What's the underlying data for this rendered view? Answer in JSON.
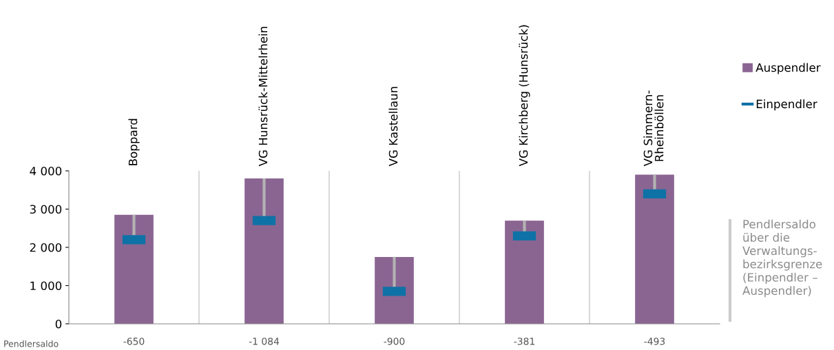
{
  "chart_data": {
    "type": "bar",
    "categories": [
      "Boppard",
      "VG Hunsrück-Mittelrhein",
      "VG Kastellaun",
      "VG Kirchberg (Hunsrück)",
      "VG Simmern-\nRheinböllen"
    ],
    "series": [
      {
        "name": "Auspendler",
        "color": "#8a6592",
        "values": [
          2850,
          3800,
          1750,
          2700,
          3900
        ]
      },
      {
        "name": "Einpendler",
        "type": "scatter",
        "color": "#0f72a6",
        "values": [
          2200,
          2700,
          850,
          2300,
          3400
        ],
        "errors": [
          [
            2200,
            2850
          ],
          [
            2700,
            3800
          ],
          [
            850,
            1750
          ],
          [
            2300,
            2700
          ],
          [
            3400,
            3900
          ]
        ]
      }
    ],
    "ylim": [
      0,
      4000
    ],
    "yticks": [
      0,
      {
        "value": 1000,
        "label": "1 000"
      },
      {
        "value": 2000,
        "label": "2 000"
      },
      {
        "value": 3000,
        "label": "3 000"
      },
      {
        "value": 4000,
        "label": "4 000"
      }
    ],
    "grid": "x",
    "legend": "right",
    "annotations": [
      "Pendlersaldo",
      "-650",
      "-1 084",
      "-900",
      "-381",
      "-493",
      "Pendlersaldo\nüber die\nVerwaltungs-\nbezirksgrenze\n(Einpendler –\nAuspendler)"
    ]
  }
}
